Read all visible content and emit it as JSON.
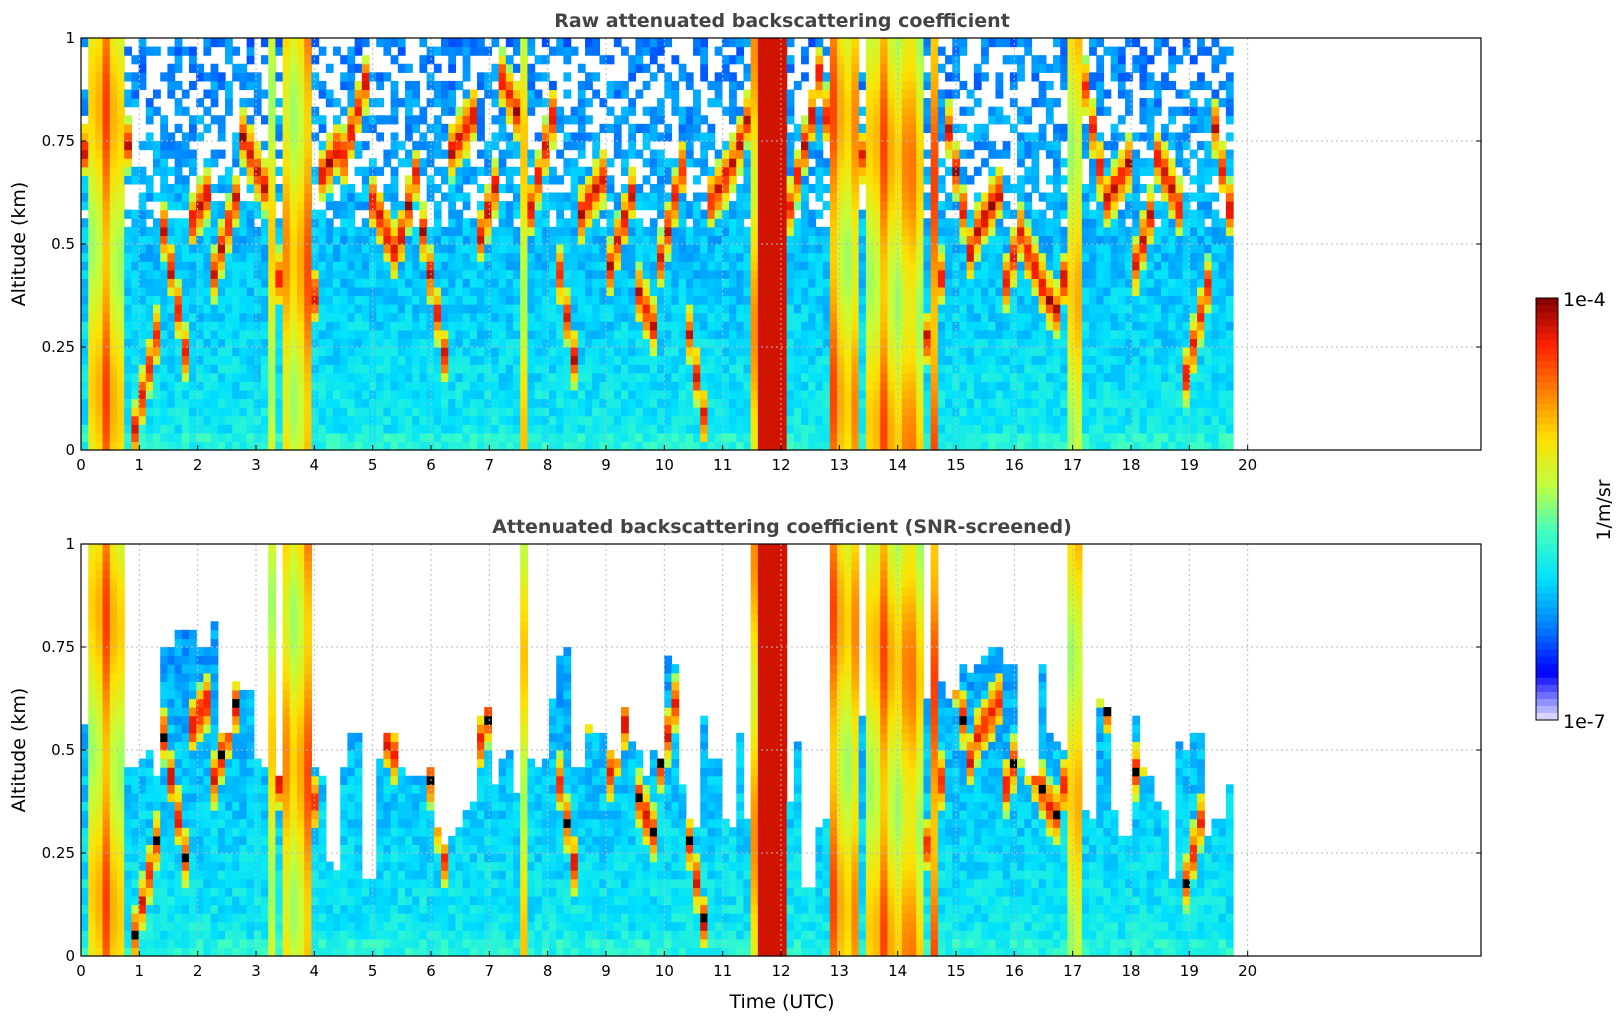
{
  "chart_data": [
    {
      "type": "heatmap",
      "title": "Raw attenuated backscattering coefficient",
      "xlabel": "",
      "ylabel": "Altitude (km)",
      "xlim": [
        0,
        24
      ],
      "ylim": [
        0,
        1
      ],
      "x_ticks": [
        "0",
        "1",
        "2",
        "3",
        "4",
        "5",
        "6",
        "7",
        "8",
        "9",
        "10",
        "11",
        "12",
        "13",
        "14",
        "15",
        "16",
        "17",
        "18",
        "19",
        "20"
      ],
      "y_ticks": [
        "0",
        "0.25",
        "0.5",
        "0.75",
        "1"
      ],
      "data_end_x": 19.75,
      "grid": true,
      "screened": false
    },
    {
      "type": "heatmap",
      "title": "Attenuated backscattering coefficient (SNR-screened)",
      "xlabel": "Time (UTC)",
      "ylabel": "Altitude (km)",
      "xlim": [
        0,
        24
      ],
      "ylim": [
        0,
        1
      ],
      "x_ticks": [
        "0",
        "1",
        "2",
        "3",
        "4",
        "5",
        "6",
        "7",
        "8",
        "9",
        "10",
        "11",
        "12",
        "13",
        "14",
        "15",
        "16",
        "17",
        "18",
        "19",
        "20"
      ],
      "y_ticks": [
        "0",
        "0.25",
        "0.5",
        "0.75",
        "1"
      ],
      "data_end_x": 19.75,
      "grid": true,
      "screened": true
    }
  ],
  "colorbar": {
    "label": "1/m/sr",
    "max_label": "1e-4",
    "min_label": "1e-7",
    "scale": "log",
    "colormap": [
      "#e6e6ff",
      "#0000ff",
      "#0080ff",
      "#00e0ff",
      "#40ffc0",
      "#c0ff40",
      "#ffe000",
      "#ff8000",
      "#ff2000",
      "#800000"
    ]
  },
  "dense_bands": [
    {
      "start": 0.1,
      "end": 0.7
    },
    {
      "start": 3.25,
      "end": 3.35
    },
    {
      "start": 3.4,
      "end": 3.95
    },
    {
      "start": 7.5,
      "end": 7.65
    },
    {
      "start": 11.5,
      "end": 12.15
    },
    {
      "start": 12.8,
      "end": 13.3
    },
    {
      "start": 13.5,
      "end": 14.4
    },
    {
      "start": 14.6,
      "end": 14.75
    },
    {
      "start": 16.85,
      "end": 17.15
    }
  ]
}
